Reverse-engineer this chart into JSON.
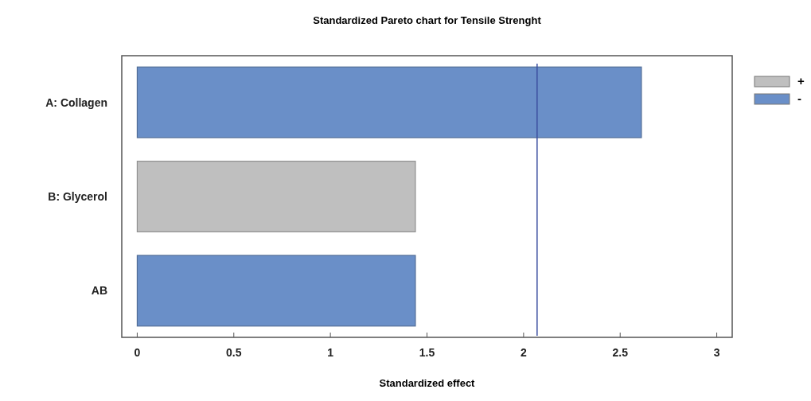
{
  "chart_data": {
    "type": "bar",
    "orientation": "horizontal",
    "title": "Standardized Pareto chart for Tensile Strenght",
    "xlabel": "Standardized effect",
    "categories": [
      "A: Collagen",
      "B: Glycerol",
      "AB"
    ],
    "series": [
      {
        "name": "+",
        "color": "#bfbfbf",
        "values": [
          null,
          1.44,
          null
        ]
      },
      {
        "name": "-",
        "color": "#6a8fc8",
        "values": [
          2.61,
          null,
          1.44
        ]
      }
    ],
    "xlim": [
      -0.08,
      3.08
    ],
    "xticks": [
      0,
      0.5,
      1,
      1.5,
      2,
      2.5,
      3
    ],
    "ref_lines": [
      {
        "axis": "x",
        "value": 2.07,
        "color": "#3c4fa0"
      }
    ],
    "legend": "top right",
    "grid": false
  }
}
